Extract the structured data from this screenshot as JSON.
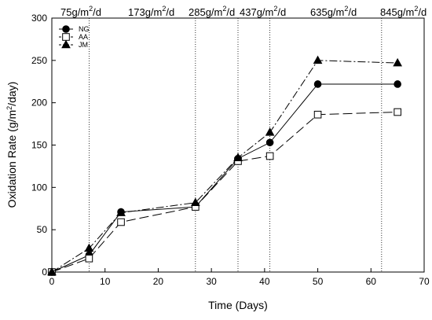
{
  "chart_data": {
    "type": "line",
    "xlabel": "Time (Days)",
    "ylabel_parts": [
      "Oxidation Rate (g/m",
      "2",
      "/day)"
    ],
    "xlim": [
      0,
      70
    ],
    "ylim": [
      0,
      300
    ],
    "x_ticks": [
      0,
      10,
      20,
      30,
      40,
      50,
      60,
      70
    ],
    "y_ticks": [
      0,
      50,
      100,
      150,
      200,
      250,
      300
    ],
    "grid": false,
    "legend_position": "top-left",
    "series": [
      {
        "name": "NG",
        "marker": "filled-circle",
        "line_style": "solid",
        "x": [
          0,
          7,
          13,
          27,
          35,
          41,
          50,
          65
        ],
        "y": [
          0,
          20,
          71,
          77,
          134,
          153,
          222,
          222
        ]
      },
      {
        "name": "AA",
        "marker": "open-square",
        "line_style": "long-dash",
        "x": [
          0,
          7,
          13,
          27,
          35,
          41,
          50,
          65
        ],
        "y": [
          0,
          16,
          59,
          77,
          131,
          137,
          186,
          189
        ]
      },
      {
        "name": "JM",
        "marker": "filled-triangle",
        "line_style": "dash-dot",
        "x": [
          0,
          7,
          13,
          27,
          35,
          41,
          50,
          65
        ],
        "y": [
          0,
          28,
          70,
          82,
          135,
          165,
          250,
          247
        ]
      }
    ],
    "loading_changes": [
      {
        "x": 7,
        "text": "75g/m",
        "sup": "2",
        "suffix": "/d"
      },
      {
        "x": 27,
        "text": "173g/m",
        "sup": "2",
        "suffix": "/d"
      },
      {
        "x": 35,
        "text": "285g/m",
        "sup": "2",
        "suffix": "/d"
      },
      {
        "x": 41,
        "text": "437g/m",
        "sup": "2",
        "suffix": "/d"
      },
      {
        "x": 62,
        "text": "635g/m",
        "sup": "2",
        "suffix": "/d"
      },
      {
        "x": null,
        "text": "845g/m",
        "sup": "2",
        "suffix": "/d"
      }
    ]
  }
}
